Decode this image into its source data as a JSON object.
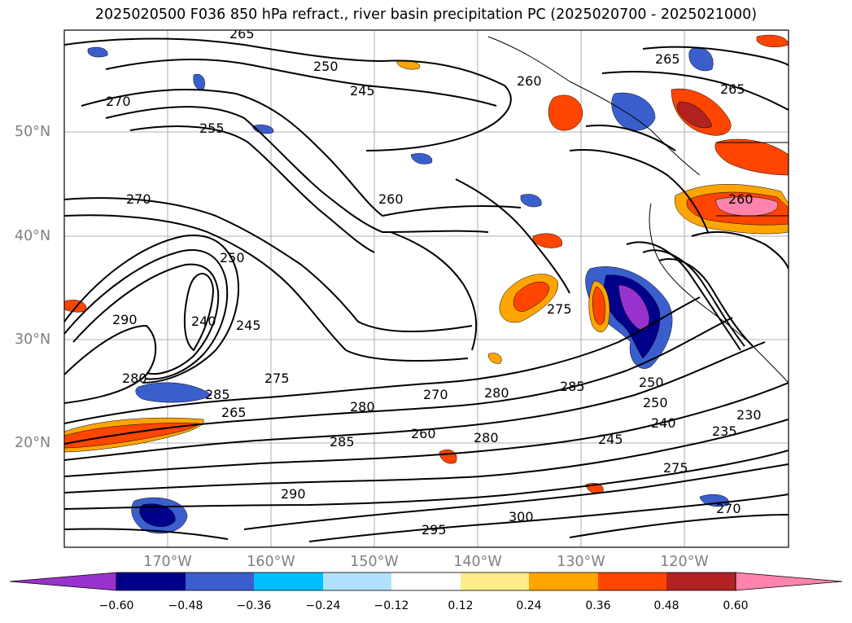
{
  "title": "2025020500 F036 850 hPa refract., river basin precipitation PC (2025020700 - 2025021000)",
  "lat_labels": [
    "50°N",
    "40°N",
    "30°N",
    "20°N"
  ],
  "lon_labels": [
    "170°W",
    "160°W",
    "150°W",
    "140°W",
    "130°W",
    "120°W"
  ],
  "contour_labels": [
    "265",
    "250",
    "245",
    "270",
    "255",
    "260",
    "270",
    "250",
    "240",
    "245",
    "290",
    "280",
    "275",
    "285",
    "265",
    "280",
    "270",
    "280",
    "260",
    "285",
    "290",
    "300",
    "295",
    "285",
    "280",
    "250",
    "250",
    "240",
    "245",
    "230",
    "235",
    "275",
    "270",
    "260",
    "265",
    "265",
    "260",
    "275"
  ],
  "colorbar": {
    "ticks": [
      "−0.60",
      "−0.48",
      "−0.36",
      "−0.24",
      "−0.12",
      "0.12",
      "0.24",
      "0.36",
      "0.48",
      "0.60"
    ],
    "colors": [
      "#9932cc",
      "#00008b",
      "#3a5fcd",
      "#00bfff",
      "#b0e2ff",
      "#ffffff",
      "#ffec8b",
      "#ffa500",
      "#ff4500",
      "#b22222",
      "#ff83aa"
    ]
  }
}
